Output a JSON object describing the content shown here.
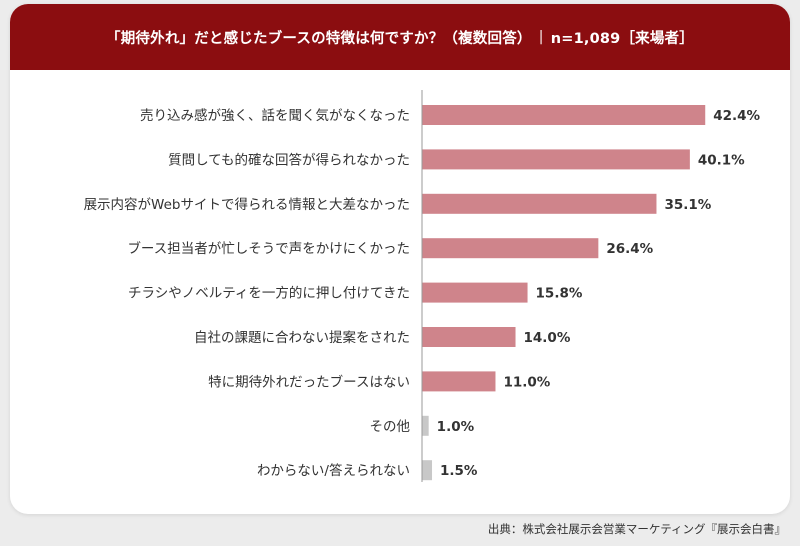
{
  "header": {
    "question": "「期待外れ」だと感じたブースの特徴は何ですか？（複数回答）",
    "separator": "|",
    "sample": "n=1,089［来場者］"
  },
  "source": "出典：株式会社展示会営業マーケティング『展示会白書』",
  "colors": {
    "header": "#8b0d10",
    "bar": "#cf848b",
    "bar_other": "#c8c8c8",
    "axis": "#9a9a9a"
  },
  "chart_data": {
    "type": "bar",
    "orientation": "horizontal",
    "title": "",
    "xlabel": "",
    "ylabel": "",
    "xlim": [
      0,
      45
    ],
    "grid": false,
    "categories": [
      "売り込み感が強く、話を聞く気がなくなった",
      "質問しても的確な回答が得られなかった",
      "展示内容がWebサイトで得られる情報と大差なかった",
      "ブース担当者が忙しそうで声をかけにくかった",
      "チラシやノベルティを一方的に押し付けてきた",
      "自社の課題に合わない提案をされた",
      "特に期待外れだったブースはない",
      "その他",
      "わからない/答えられない"
    ],
    "values": [
      42.4,
      40.1,
      35.1,
      26.4,
      15.8,
      14.0,
      11.0,
      1.0,
      1.5
    ],
    "value_labels": [
      "42.4%",
      "40.1%",
      "35.1%",
      "26.4%",
      "15.8%",
      "14.0%",
      "11.0%",
      "1.0%",
      "1.5%"
    ],
    "highlight": [
      true,
      true,
      true,
      true,
      true,
      true,
      true,
      false,
      false
    ]
  }
}
